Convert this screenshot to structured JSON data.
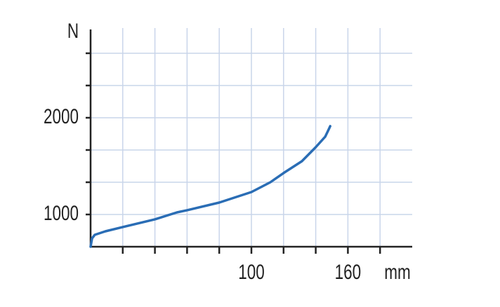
{
  "chart_data": {
    "type": "line",
    "y_label": "N",
    "x_label": "mm",
    "xlim": [
      0,
      200
    ],
    "ylim": [
      666.7,
      2913
    ],
    "xticks": [
      100,
      160
    ],
    "xminor_ticks": [
      20,
      40,
      60,
      80,
      120,
      140,
      180
    ],
    "yticks": [
      1000,
      2000
    ],
    "yminor_ticks": [
      1333.3,
      1666.7,
      2333.3,
      2666.7
    ],
    "grid": true,
    "series": [
      {
        "color": "#2a6db5",
        "x": [
          0,
          0.9,
          2.6,
          9.2,
          20,
          40,
          53.7,
          60,
          80,
          100,
          111.8,
          120,
          131.4,
          140,
          145.9,
          148,
          149
        ],
        "values": [
          667,
          754,
          790,
          826,
          870,
          950,
          1022,
          1044,
          1123,
          1232,
          1333,
          1428,
          1551,
          1696,
          1804,
          1877,
          1913
        ]
      }
    ]
  }
}
